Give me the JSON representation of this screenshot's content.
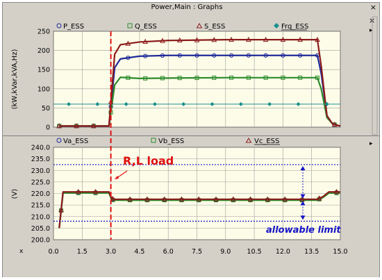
{
  "window": {
    "title": "Power,Main : Graphs",
    "close_glyph": "×"
  },
  "side_buttons": {
    "close_glyph": "×",
    "menu_glyph": "▸"
  },
  "annotations": {
    "load_label": "R,L load",
    "limit_label": "allowable limit"
  },
  "colors": {
    "plot_bg": "#fdfce8",
    "grid": "#9c9c9c",
    "panel": "#d4d0c8",
    "event_line": "#e01010",
    "limit_line": "#1515c8",
    "annotation_red": "#e01010",
    "annotation_blue": "#1515c8"
  },
  "chart_data": [
    {
      "type": "line",
      "ylabel": "(kW,kVar,kVA,Hz)",
      "xlim": [
        0,
        15
      ],
      "ylim": [
        0,
        250
      ],
      "yticks": [
        0,
        50,
        100,
        150,
        200,
        250
      ],
      "grid": true,
      "legend_position": "top",
      "series": [
        {
          "name": "P_ESS",
          "color": "#1e2a9a",
          "marker": "circle",
          "x": [
            0.3,
            1.2,
            2.9,
            3.2,
            3.5,
            4.5,
            6,
            9,
            12,
            13.8,
            14.0,
            14.3,
            14.6,
            15
          ],
          "y": [
            3,
            3,
            3,
            155,
            178,
            185,
            187,
            187,
            187,
            187,
            140,
            30,
            8,
            3
          ]
        },
        {
          "name": "Q_ESS",
          "color": "#2b8b2b",
          "marker": "square",
          "x": [
            0.3,
            1.2,
            2.9,
            3.2,
            3.5,
            4.5,
            6,
            9,
            12,
            13.8,
            14.0,
            14.3,
            14.6,
            15
          ],
          "y": [
            3,
            3,
            3,
            110,
            130,
            127,
            128,
            129,
            129,
            129,
            100,
            25,
            8,
            3
          ]
        },
        {
          "name": "S_ESS",
          "color": "#8b1a1a",
          "marker": "triangle",
          "x": [
            0.3,
            1.2,
            2.9,
            3.2,
            3.5,
            4.5,
            6,
            9,
            12,
            13.8,
            14.0,
            14.3,
            14.6,
            15
          ],
          "y": [
            3,
            3,
            3,
            190,
            215,
            222,
            226,
            228,
            228,
            228,
            160,
            30,
            8,
            3
          ]
        },
        {
          "name": "Frq_ESS",
          "color": "#1a8f8f",
          "marker": "diamond",
          "x": [
            0,
            15
          ],
          "y": [
            60,
            60
          ]
        }
      ],
      "x_event": 3.0
    },
    {
      "type": "line",
      "ylabel": "(V)",
      "xlabel": "x",
      "xlim": [
        0,
        15
      ],
      "ylim": [
        200,
        240
      ],
      "yticks": [
        200.0,
        205.0,
        210.0,
        215.0,
        220.0,
        225.0,
        230.0,
        235.0,
        240.0
      ],
      "ytick_labels": [
        "200.0",
        "205.0",
        "210.0",
        "215.0",
        "220.0",
        "225.0",
        "230.0",
        "235.0",
        "240.0"
      ],
      "xticks": [
        0,
        1.5,
        3,
        4.5,
        6,
        7.5,
        9,
        10.5,
        12,
        13.5,
        15
      ],
      "xtick_labels": [
        "0.0",
        "1.5",
        "3.0",
        "4.5",
        "6.0",
        "7.5",
        "9.0",
        "10.5",
        "12.0",
        "13.5",
        "15.0"
      ],
      "grid": true,
      "legend_position": "top",
      "series": [
        {
          "name": "Va_ESS",
          "color": "#1e2a9a",
          "marker": "circle",
          "x": [
            0.3,
            0.5,
            2.9,
            3.05,
            3.2,
            13.8,
            14.1,
            14.4,
            15
          ],
          "y": [
            205,
            220.5,
            220.5,
            217.5,
            217.3,
            217.3,
            218.5,
            220.5,
            220.5
          ]
        },
        {
          "name": "Vb_ESS",
          "color": "#2b8b2b",
          "marker": "square",
          "x": [
            0.3,
            0.5,
            2.9,
            3.05,
            3.2,
            13.8,
            14.1,
            14.4,
            15
          ],
          "y": [
            205,
            220.2,
            220.2,
            217.2,
            217.1,
            217.1,
            218.3,
            220.2,
            220.2
          ]
        },
        {
          "name": "Vc_ESS",
          "color": "#8b1a1a",
          "marker": "triangle",
          "x": [
            0.3,
            0.5,
            2.9,
            3.05,
            3.2,
            13.8,
            14.1,
            14.4,
            15
          ],
          "y": [
            205,
            220.7,
            220.7,
            217.8,
            217.5,
            217.5,
            218.7,
            220.7,
            220.7
          ]
        }
      ],
      "limit_lines": [
        232.5,
        208.0
      ],
      "x_event": 3.0
    }
  ]
}
